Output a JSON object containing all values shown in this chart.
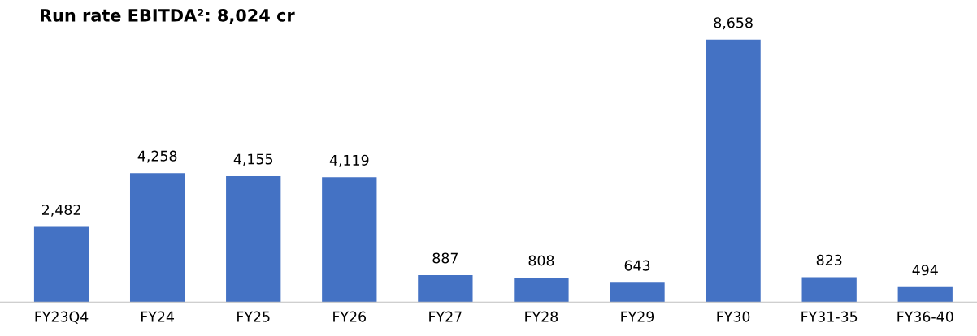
{
  "chart_data": {
    "type": "bar",
    "title": "Run rate EBITDA²: 8,024 cr",
    "categories": [
      "FY23Q4",
      "FY24",
      "FY25",
      "FY26",
      "FY27",
      "FY28",
      "FY29",
      "FY30",
      "FY31-35",
      "FY36-40"
    ],
    "values": [
      2482,
      4258,
      4155,
      4119,
      887,
      808,
      643,
      8658,
      823,
      494
    ],
    "value_labels": [
      "2,482",
      "4,258",
      "4,155",
      "4,119",
      "887",
      "808",
      "643",
      "8,658",
      "823",
      "494"
    ],
    "color": "#4472c4",
    "grid": false,
    "legend": false
  }
}
